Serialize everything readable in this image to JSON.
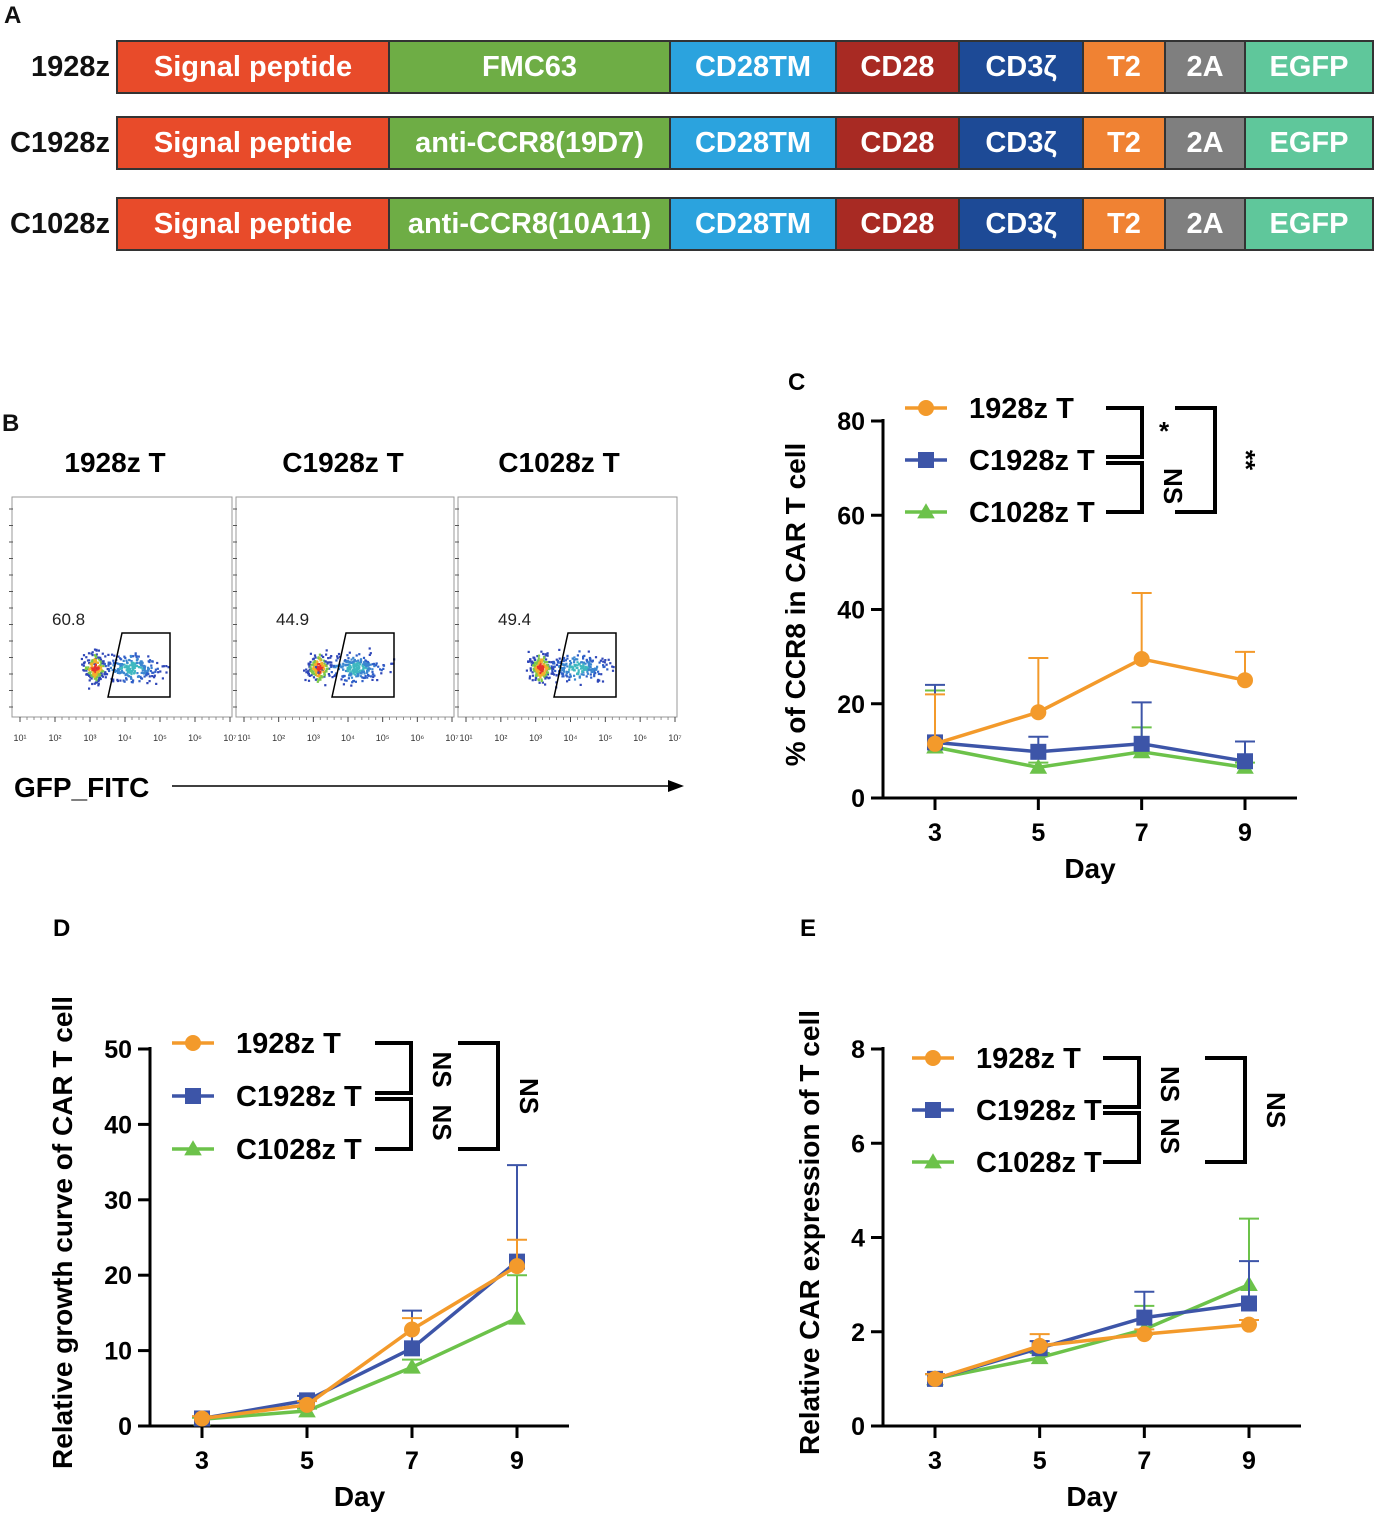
{
  "colors": {
    "orange": "#F39A2B",
    "blue": "#3D55A8",
    "green": "#6CC24A",
    "signal": "#E84B2A",
    "fmc63": "#6EAD45",
    "cd28tm": "#2BA3DE",
    "cd28": "#A82A23",
    "cd3z": "#1D4A96",
    "t2": "#F08233",
    "twoA": "#7F7F7F",
    "egfp": "#5FC79B"
  },
  "panel_a": {
    "letter": "A",
    "constructs": [
      {
        "name": "1928z",
        "segments": [
          "Signal peptide",
          "FMC63",
          "CD28TM",
          "CD28",
          "CD3ζ",
          "T2",
          "2A",
          "EGFP"
        ]
      },
      {
        "name": "C1928z",
        "segments": [
          "Signal peptide",
          "anti-CCR8(19D7)",
          "CD28TM",
          "CD28",
          "CD3ζ",
          "T2",
          "2A",
          "EGFP"
        ]
      },
      {
        "name": "C1028z",
        "segments": [
          "Signal peptide",
          "anti-CCR8(10A11)",
          "CD28TM",
          "CD28",
          "CD3ζ",
          "T2",
          "2A",
          "EGFP"
        ]
      }
    ]
  },
  "panel_b": {
    "letter": "B",
    "x_axis_label": "GFP_FITC",
    "decades": [
      "10¹",
      "10²",
      "10³",
      "10⁴",
      "10⁵",
      "10⁶",
      "10⁷"
    ],
    "plots": [
      {
        "title": "1928z T",
        "gate_value": "60.8"
      },
      {
        "title": "C1928z T",
        "gate_value": "44.9"
      },
      {
        "title": "C1028z T",
        "gate_value": "49.4"
      }
    ]
  },
  "chart_data": [
    {
      "panel": "C",
      "type": "line",
      "x": [
        3,
        5,
        7,
        9
      ],
      "xlabel": "Day",
      "ylabel": "% of CCR8  in CAR T cell",
      "ylim": [
        0,
        80
      ],
      "yticks": [
        0,
        20,
        40,
        60,
        80
      ],
      "series": [
        {
          "name": "1928z T",
          "color": "orange",
          "marker": "circle",
          "values": [
            11.5,
            18.2,
            29.5,
            25.0
          ],
          "err": [
            10.5,
            11.5,
            14.0,
            6.0
          ]
        },
        {
          "name": "C1928z T",
          "color": "blue",
          "marker": "square",
          "values": [
            11.8,
            9.8,
            11.5,
            7.8
          ],
          "err": [
            12.2,
            3.2,
            8.8,
            4.2
          ]
        },
        {
          "name": "C1028z T",
          "color": "green",
          "marker": "triangle",
          "values": [
            10.8,
            6.5,
            9.8,
            6.5
          ],
          "err": [
            12.0,
            1.0,
            5.2,
            1.0
          ]
        }
      ],
      "significance": {
        "inner_top": "*",
        "inner_bottom": "NS",
        "outer": "**"
      }
    },
    {
      "panel": "D",
      "type": "line",
      "x": [
        3,
        5,
        7,
        9
      ],
      "xlabel": "Day",
      "ylabel": "Relative growth curve of CAR T cell",
      "ylim": [
        0,
        50
      ],
      "yticks": [
        0,
        10,
        20,
        30,
        40,
        50
      ],
      "series": [
        {
          "name": "1928z T",
          "color": "orange",
          "marker": "circle",
          "values": [
            1.0,
            2.8,
            12.8,
            21.2
          ],
          "err": [
            0.3,
            0.5,
            1.5,
            3.5
          ]
        },
        {
          "name": "C1928z T",
          "color": "blue",
          "marker": "square",
          "values": [
            1.0,
            3.4,
            10.3,
            21.8
          ],
          "err": [
            0.3,
            0.6,
            5.0,
            12.8
          ]
        },
        {
          "name": "C1028z T",
          "color": "green",
          "marker": "triangle",
          "values": [
            0.9,
            2.0,
            7.8,
            14.3
          ],
          "err": [
            0.2,
            0.3,
            1.0,
            5.7
          ]
        }
      ],
      "significance": {
        "inner_top": "NS",
        "inner_bottom": "NS",
        "outer": "NS"
      }
    },
    {
      "panel": "E",
      "type": "line",
      "x": [
        3,
        5,
        7,
        9
      ],
      "xlabel": "Day",
      "ylabel": "Relative CAR expression of T cell",
      "ylim": [
        0,
        8
      ],
      "yticks": [
        0,
        2,
        4,
        6,
        8
      ],
      "series": [
        {
          "name": "1928z T",
          "color": "orange",
          "marker": "circle",
          "values": [
            1.0,
            1.7,
            1.95,
            2.15
          ],
          "err": [
            0.1,
            0.25,
            0.1,
            0.1
          ]
        },
        {
          "name": "C1928z T",
          "color": "blue",
          "marker": "square",
          "values": [
            1.0,
            1.65,
            2.3,
            2.6
          ],
          "err": [
            0.1,
            0.15,
            0.55,
            0.9
          ]
        },
        {
          "name": "C1028z T",
          "color": "green",
          "marker": "triangle",
          "values": [
            1.0,
            1.45,
            2.05,
            3.0
          ],
          "err": [
            0.1,
            0.1,
            0.5,
            1.4
          ]
        }
      ],
      "significance": {
        "inner_top": "NS",
        "inner_bottom": "NS",
        "outer": "NS"
      }
    }
  ]
}
